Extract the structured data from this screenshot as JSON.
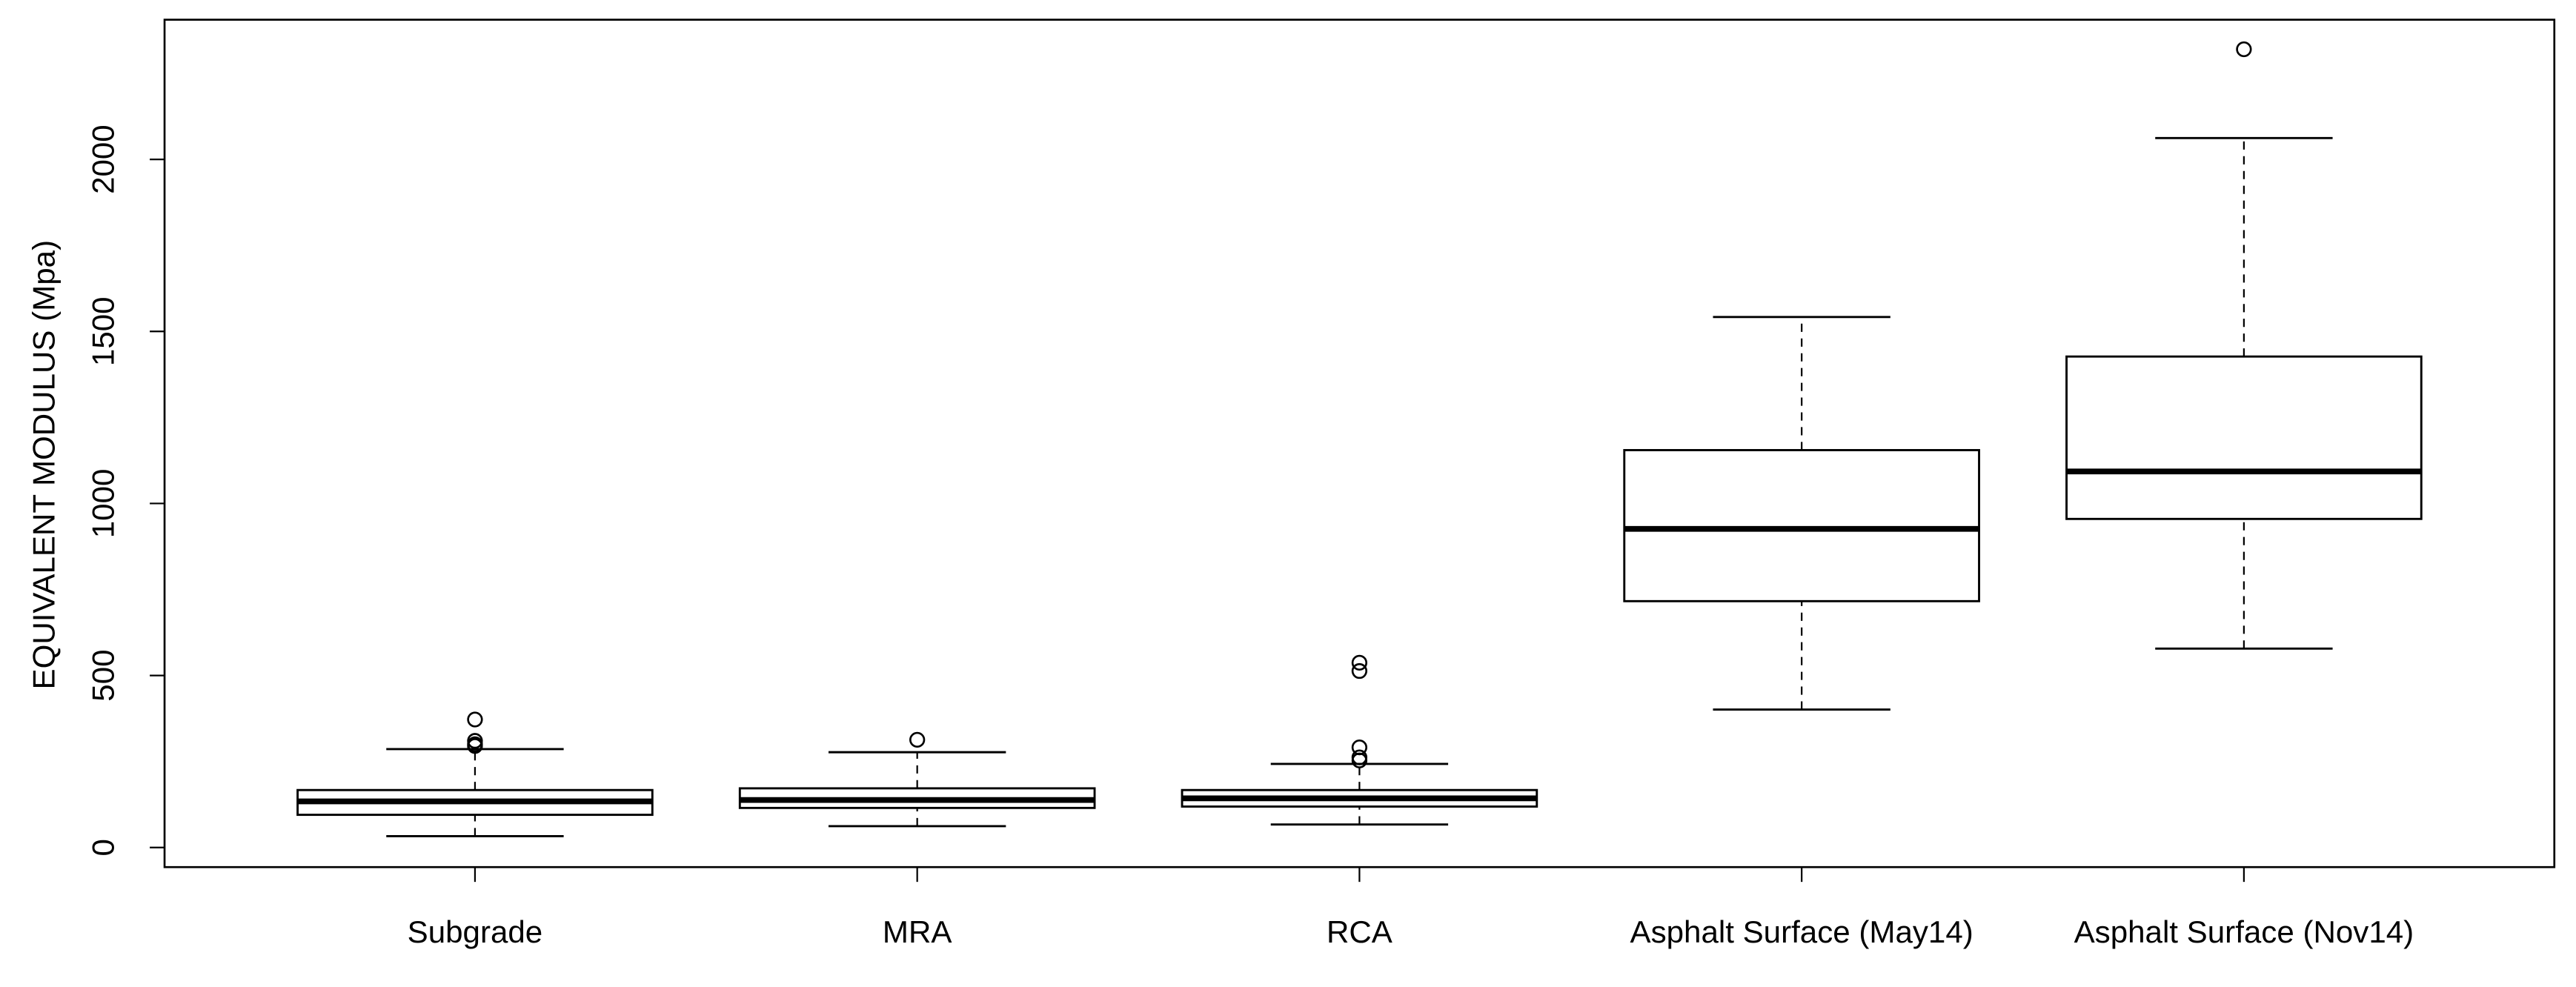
{
  "chart_data": {
    "type": "box",
    "ylabel": "EQUIVALENT MODULUS (Mpa)",
    "categories": [
      "Subgrade",
      "MRA",
      "RCA",
      "Asphalt Surface (May14)",
      "Asphalt Surface (Nov14)"
    ],
    "boxes": [
      {
        "whislo": 33,
        "q1": 95,
        "med": 134,
        "q3": 167,
        "whishi": 286,
        "fliers": [
          372,
          310,
          300,
          295
        ]
      },
      {
        "whislo": 62,
        "q1": 115,
        "med": 138,
        "q3": 172,
        "whishi": 277,
        "fliers": [
          313
        ]
      },
      {
        "whislo": 67,
        "q1": 119,
        "med": 143,
        "q3": 167,
        "whishi": 243,
        "fliers": [
          537,
          513,
          291,
          262,
          253
        ]
      },
      {
        "whislo": 401,
        "q1": 716,
        "med": 926,
        "q3": 1155,
        "whishi": 1542,
        "fliers": []
      },
      {
        "whislo": 578,
        "q1": 955,
        "med": 1093,
        "q3": 1427,
        "whishi": 2062,
        "fliers": [
          2320
        ]
      }
    ],
    "color": "#000000",
    "ylim": [
      -57,
      2406
    ],
    "yticks": [
      0,
      500,
      1000,
      1500,
      2000
    ]
  }
}
